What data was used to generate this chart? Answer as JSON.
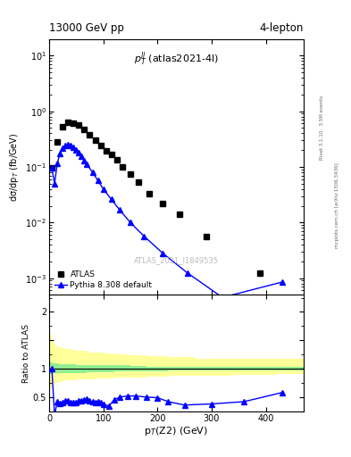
{
  "title_left": "13000 GeV pp",
  "title_right": "4-lepton",
  "plot_label": "$p_T^{ll}$ (atlas2021-4l)",
  "watermark": "ATLAS_2021_I1849535",
  "right_label": "Rivet 3.1.10,  3.5M events",
  "right_label2": "mcplots.cern.ch [arXiv:1306.3436]",
  "ylabel_main": "dσ/dp$_T$ (fb/GeV)",
  "ylabel_ratio": "Ratio to ATLAS",
  "xlabel": "p$_T$(Z2) (GeV)",
  "xlim": [
    0,
    470
  ],
  "ylim_main": [
    0.0005,
    20
  ],
  "ylim_ratio": [
    0.25,
    2.3
  ],
  "atlas_x": [
    5,
    15,
    25,
    35,
    45,
    55,
    65,
    75,
    85,
    95,
    105,
    115,
    125,
    135,
    150,
    165,
    185,
    210,
    240,
    290,
    390
  ],
  "atlas_y": [
    0.095,
    0.28,
    0.52,
    0.63,
    0.62,
    0.56,
    0.47,
    0.38,
    0.3,
    0.24,
    0.195,
    0.165,
    0.135,
    0.1,
    0.073,
    0.053,
    0.033,
    0.022,
    0.014,
    0.0055,
    0.00125
  ],
  "pythia_x": [
    5,
    10,
    15,
    20,
    25,
    30,
    35,
    40,
    45,
    50,
    55,
    60,
    65,
    70,
    80,
    90,
    100,
    115,
    130,
    150,
    175,
    210,
    255,
    320,
    430
  ],
  "pythia_y": [
    0.095,
    0.05,
    0.115,
    0.175,
    0.215,
    0.24,
    0.25,
    0.24,
    0.225,
    0.2,
    0.18,
    0.155,
    0.13,
    0.11,
    0.08,
    0.057,
    0.04,
    0.026,
    0.017,
    0.01,
    0.0057,
    0.0028,
    0.00125,
    0.00045,
    0.00085
  ],
  "ratio_x": [
    5,
    10,
    15,
    20,
    25,
    30,
    35,
    40,
    45,
    50,
    55,
    60,
    65,
    70,
    75,
    80,
    85,
    90,
    95,
    100,
    110,
    120,
    130,
    145,
    160,
    180,
    200,
    220,
    250,
    300,
    360,
    430
  ],
  "ratio_y": [
    1.0,
    0.18,
    0.42,
    0.39,
    0.41,
    0.44,
    0.43,
    0.41,
    0.4,
    0.41,
    0.43,
    0.43,
    0.45,
    0.46,
    0.43,
    0.42,
    0.41,
    0.42,
    0.41,
    0.38,
    0.34,
    0.45,
    0.5,
    0.52,
    0.52,
    0.5,
    0.49,
    0.42,
    0.36,
    0.38,
    0.42,
    0.58
  ],
  "band_x": [
    0,
    2,
    5,
    8,
    12,
    17,
    22,
    28,
    35,
    42,
    50,
    60,
    70,
    85,
    100,
    120,
    150,
    180,
    220,
    270,
    340,
    420,
    470
  ],
  "band_green_lo": [
    0.8,
    0.88,
    0.9,
    0.91,
    0.92,
    0.92,
    0.92,
    0.93,
    0.93,
    0.93,
    0.93,
    0.93,
    0.93,
    0.94,
    0.94,
    0.94,
    0.95,
    0.95,
    0.96,
    0.97,
    0.97,
    0.97,
    0.97
  ],
  "band_green_hi": [
    1.3,
    1.15,
    1.12,
    1.1,
    1.09,
    1.09,
    1.08,
    1.08,
    1.08,
    1.08,
    1.08,
    1.07,
    1.07,
    1.07,
    1.07,
    1.06,
    1.06,
    1.05,
    1.04,
    1.04,
    1.04,
    1.04,
    1.04
  ],
  "band_yellow_lo": [
    0.45,
    0.58,
    0.65,
    0.7,
    0.73,
    0.75,
    0.77,
    0.78,
    0.79,
    0.8,
    0.8,
    0.81,
    0.81,
    0.82,
    0.83,
    0.83,
    0.84,
    0.85,
    0.86,
    0.87,
    0.88,
    0.89,
    0.9
  ],
  "band_yellow_hi": [
    2.1,
    1.8,
    1.6,
    1.5,
    1.44,
    1.4,
    1.38,
    1.36,
    1.35,
    1.34,
    1.33,
    1.32,
    1.31,
    1.29,
    1.28,
    1.27,
    1.26,
    1.24,
    1.22,
    1.2,
    1.18,
    1.17,
    1.17
  ],
  "atlas_color": "black",
  "pythia_color": "blue",
  "band_green_color": "#90ee90",
  "band_yellow_color": "#ffff99",
  "ratio_line_y": 1.0,
  "atlas_marker": "s",
  "pythia_marker": "^",
  "pythia_markersize": 4,
  "atlas_markersize": 5
}
